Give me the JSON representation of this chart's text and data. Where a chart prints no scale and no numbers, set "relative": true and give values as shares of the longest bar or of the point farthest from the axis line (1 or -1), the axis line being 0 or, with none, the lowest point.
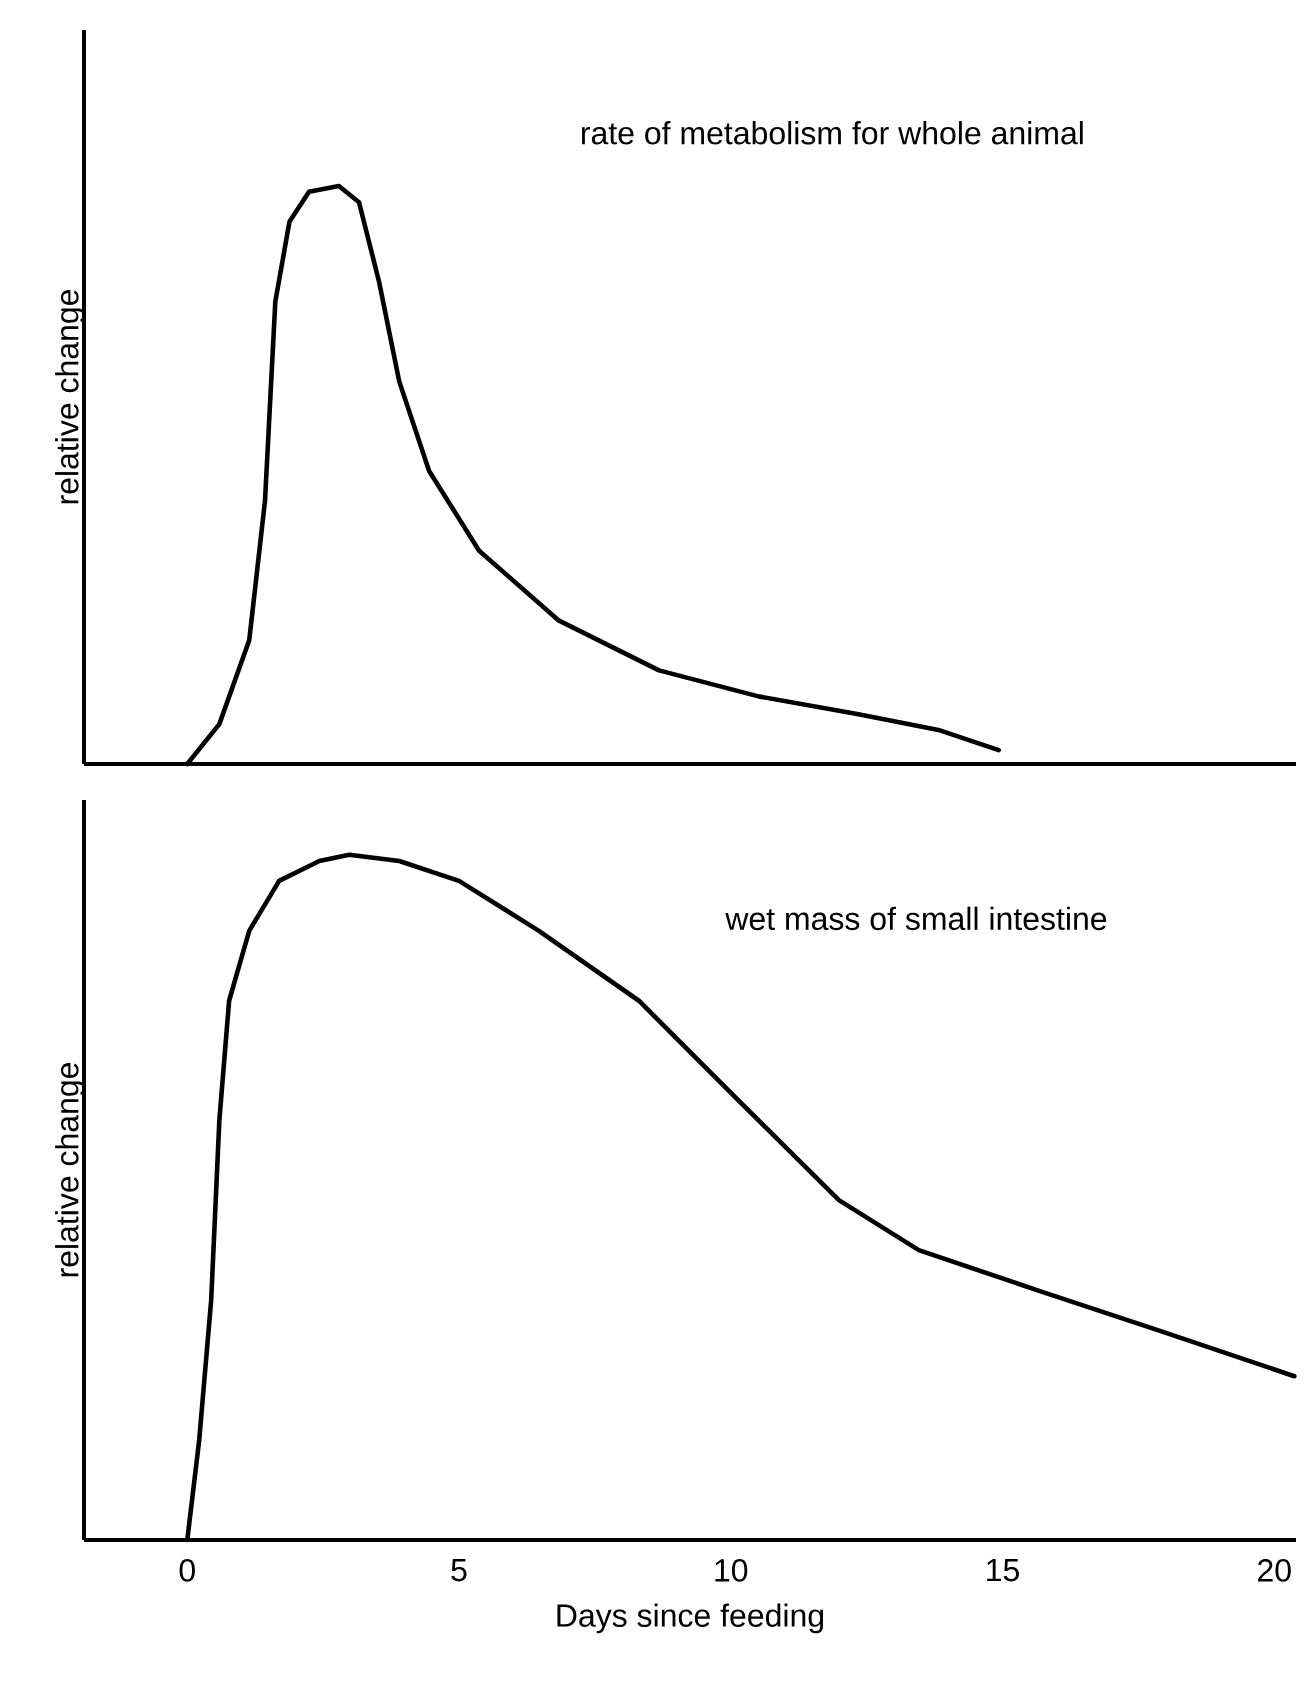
{
  "chart_data": [
    {
      "type": "line",
      "ylabel": "relative change",
      "relative": true,
      "xlim": [
        -1.9,
        20.4
      ],
      "xticks": [
        0,
        5,
        10,
        15,
        20
      ],
      "tick_labels": false,
      "marker": "none",
      "line_style": "solid",
      "series": [
        {
          "name": "rate of metabolism for whole animal",
          "color": "#000000",
          "x": [
            0,
            0.59,
            1.14,
            1.43,
            1.62,
            1.88,
            2.24,
            2.79,
            3.16,
            3.53,
            3.9,
            4.45,
            5.37,
            6.84,
            8.68,
            10.51,
            12.35,
            13.82,
            14.93
          ],
          "values": [
            0,
            0.069,
            0.214,
            0.455,
            0.8,
            0.938,
            0.99,
            1.0,
            0.972,
            0.834,
            0.662,
            0.507,
            0.369,
            0.248,
            0.162,
            0.117,
            0.086,
            0.059,
            0.024
          ]
        }
      ]
    },
    {
      "type": "line",
      "xlabel": "Days since feeding",
      "ylabel": "relative change",
      "relative": true,
      "xlim": [
        -1.9,
        20.4
      ],
      "xticks": [
        0,
        5,
        10,
        15,
        20
      ],
      "tick_labels": "x",
      "marker": "none",
      "line_style": "solid",
      "series": [
        {
          "name": "wet mass of small intestine",
          "color": "#000000",
          "x": [
            0,
            0.22,
            0.44,
            0.59,
            0.77,
            1.14,
            1.69,
            2.43,
            2.98,
            3.9,
            5.0,
            6.47,
            8.31,
            10.15,
            11.99,
            13.46,
            15.66,
            17.87,
            20.37
          ],
          "values": [
            0,
            0.146,
            0.35,
            0.612,
            0.787,
            0.889,
            0.962,
            0.991,
            1.0,
            0.991,
            0.962,
            0.889,
            0.787,
            0.641,
            0.496,
            0.423,
            0.364,
            0.306,
            0.239
          ]
        }
      ]
    }
  ]
}
